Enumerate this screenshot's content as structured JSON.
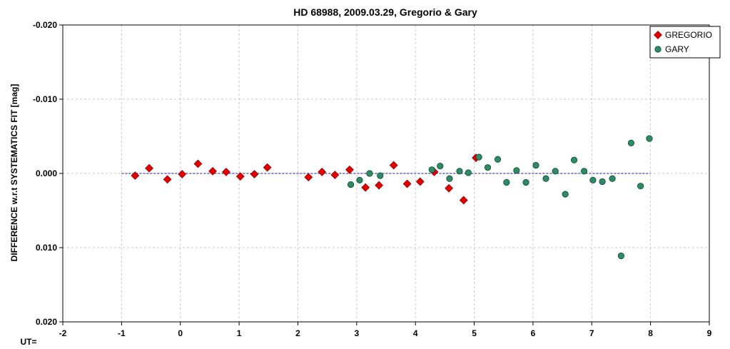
{
  "chart_data": {
    "type": "scatter",
    "title": "HD 68988, 2009.03.29, Gregorio & Gary",
    "xlabel": "UT=",
    "ylabel": "DIFFERENCE w.r.t SYSTEMATICS FIT [mag]",
    "xlim": [
      -2,
      9
    ],
    "ylim": [
      0.02,
      -0.02
    ],
    "y_inverted": true,
    "xticks": [
      "-2",
      "-1",
      "0",
      "1",
      "2",
      "3",
      "4",
      "5",
      "6",
      "7",
      "8",
      "9"
    ],
    "yticks": [
      "-0.020",
      "-0.010",
      "0.000",
      "0.010",
      "0.020"
    ],
    "grid": true,
    "legend_position": "top-right",
    "reference_line": {
      "y": 0.0,
      "x_range": [
        -1.0,
        8.0
      ],
      "style": "dashed",
      "color": "#1a1a8c"
    },
    "series": [
      {
        "name": "GREGORIO",
        "marker": "diamond",
        "color": "#e00000",
        "points": [
          [
            -0.77,
            0.0003
          ],
          [
            -0.53,
            -0.0007
          ],
          [
            -0.22,
            0.0008
          ],
          [
            0.03,
            0.0001
          ],
          [
            0.3,
            -0.0013
          ],
          [
            0.55,
            -0.0003
          ],
          [
            0.78,
            -0.0002
          ],
          [
            1.02,
            0.0004
          ],
          [
            1.26,
            0.0001
          ],
          [
            1.48,
            -0.0008
          ],
          [
            2.18,
            0.0005
          ],
          [
            2.41,
            -0.0002
          ],
          [
            2.63,
            0.0002
          ],
          [
            2.88,
            -0.0005
          ],
          [
            3.15,
            0.0019
          ],
          [
            3.38,
            0.0016
          ],
          [
            3.63,
            -0.0011
          ],
          [
            3.86,
            0.0014
          ],
          [
            4.08,
            0.0011
          ],
          [
            4.32,
            -0.0002
          ],
          [
            4.57,
            0.002
          ],
          [
            4.82,
            0.0036
          ],
          [
            5.03,
            -0.0021
          ]
        ]
      },
      {
        "name": "GARY",
        "marker": "circle",
        "color": "#2e8b64",
        "points": [
          [
            2.9,
            0.0015
          ],
          [
            3.05,
            0.0009
          ],
          [
            3.22,
            0.0
          ],
          [
            3.4,
            0.0003
          ],
          [
            4.28,
            -0.0005
          ],
          [
            4.42,
            -0.001
          ],
          [
            4.58,
            0.0007
          ],
          [
            4.75,
            -0.0003
          ],
          [
            4.9,
            -0.0001
          ],
          [
            5.08,
            -0.0022
          ],
          [
            5.23,
            -0.0008
          ],
          [
            5.4,
            -0.0019
          ],
          [
            5.55,
            0.0012
          ],
          [
            5.72,
            -0.0004
          ],
          [
            5.88,
            0.0012
          ],
          [
            6.05,
            -0.0011
          ],
          [
            6.22,
            0.0007
          ],
          [
            6.38,
            -0.0003
          ],
          [
            6.55,
            0.0028
          ],
          [
            6.7,
            -0.0018
          ],
          [
            6.87,
            -0.0003
          ],
          [
            7.02,
            0.0009
          ],
          [
            7.18,
            0.0011
          ],
          [
            7.35,
            0.0007
          ],
          [
            7.5,
            0.0111
          ],
          [
            7.67,
            -0.0041
          ],
          [
            7.83,
            0.0017
          ],
          [
            7.98,
            -0.0047
          ]
        ]
      }
    ]
  }
}
